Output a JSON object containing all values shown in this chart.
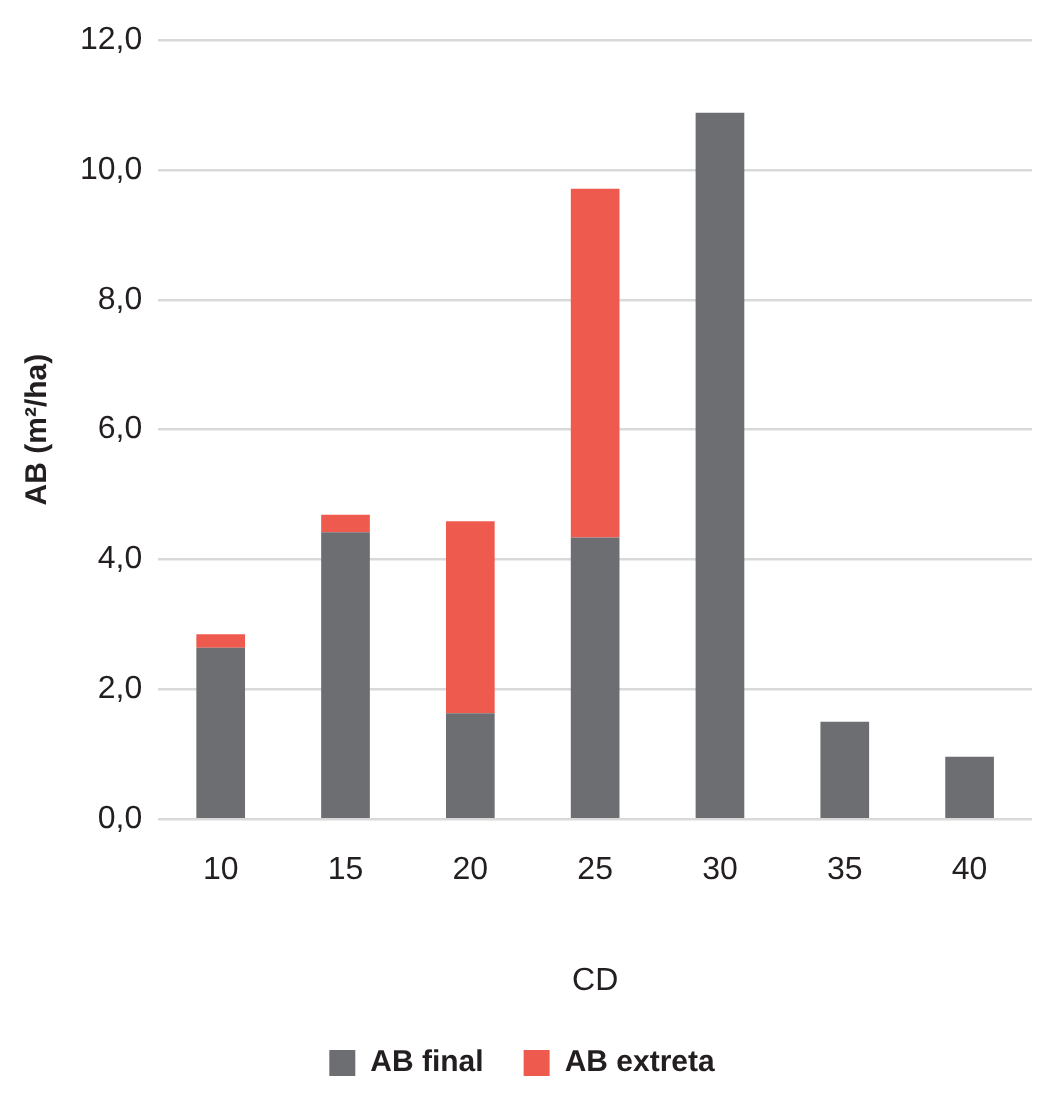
{
  "chart_data": {
    "type": "bar",
    "stacked": true,
    "xlabel": "CD",
    "ylabel": "AB (m²/ha)",
    "categories": [
      "10",
      "15",
      "20",
      "25",
      "30",
      "35",
      "40"
    ],
    "series": [
      {
        "name": "AB final",
        "color": "#6d6e71",
        "values": [
          2.64,
          4.42,
          1.63,
          4.34,
          10.88,
          1.5,
          0.96
        ]
      },
      {
        "name": "AB extreta",
        "color": "#ef5a4f",
        "values": [
          0.21,
          0.27,
          2.96,
          5.37,
          null,
          null,
          null
        ]
      }
    ],
    "ylim": [
      0,
      12
    ],
    "yticks": [
      {
        "value": 0,
        "label": "0,0"
      },
      {
        "value": 2,
        "label": "2,0"
      },
      {
        "value": 4,
        "label": "4,0"
      },
      {
        "value": 6,
        "label": "6,0"
      },
      {
        "value": 8,
        "label": "8,0"
      },
      {
        "value": 10,
        "label": "10,0"
      },
      {
        "value": 12,
        "label": "12,0"
      }
    ],
    "grid": "y",
    "legend": "bottom"
  }
}
